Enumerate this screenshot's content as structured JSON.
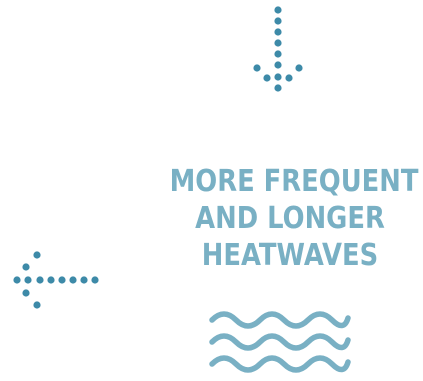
{
  "headline": {
    "line1": "MORE FREQUENT",
    "line2": "AND LONGER",
    "line3": "HEATWAVES"
  },
  "colors": {
    "text": "#79b0c4",
    "dots": "#3d8aa8",
    "waves": "#79b0c4"
  },
  "icons": {
    "down_arrow": "dotted-arrow-down-icon",
    "left_arrow": "dotted-arrow-left-icon",
    "waves": "waves-icon"
  }
}
